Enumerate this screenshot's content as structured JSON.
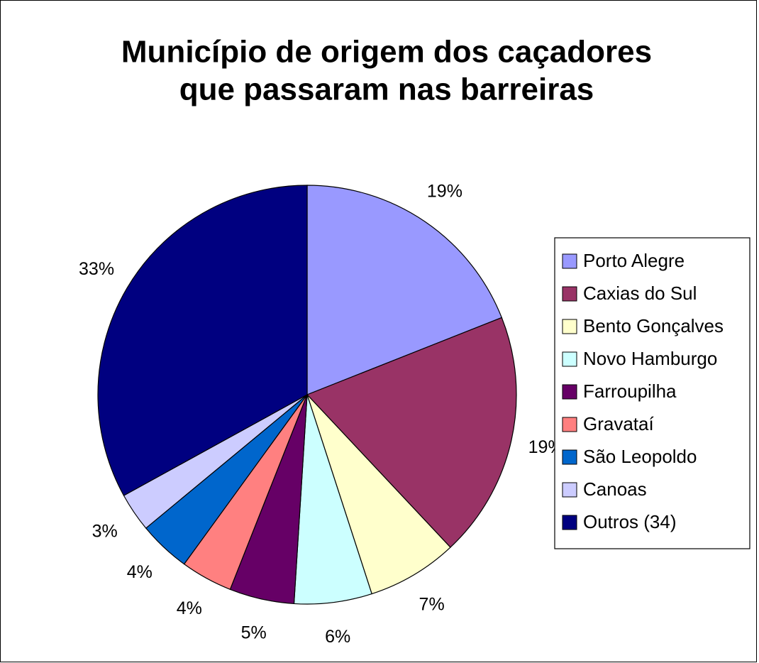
{
  "chart_data": {
    "type": "pie",
    "title": [
      "Município de origem dos caçadores",
      "que passaram nas barreiras"
    ],
    "categories": [
      "Porto Alegre",
      "Caxias do Sul",
      "Bento Gonçalves",
      "Novo Hamburgo",
      "Farroupilha",
      "Gravataí",
      "São Leopoldo",
      "Canoas",
      "Outros (34)"
    ],
    "values": [
      19,
      19,
      7,
      6,
      5,
      4,
      4,
      3,
      33
    ],
    "value_labels": [
      "19%",
      "19%",
      "7%",
      "6%",
      "5%",
      "4%",
      "4%",
      "3%",
      "33%"
    ],
    "colors": [
      "#9999ff",
      "#993366",
      "#ffffcc",
      "#ccffff",
      "#660066",
      "#ff8080",
      "#0066cc",
      "#ccccff",
      "#000080"
    ],
    "legend": "right"
  }
}
